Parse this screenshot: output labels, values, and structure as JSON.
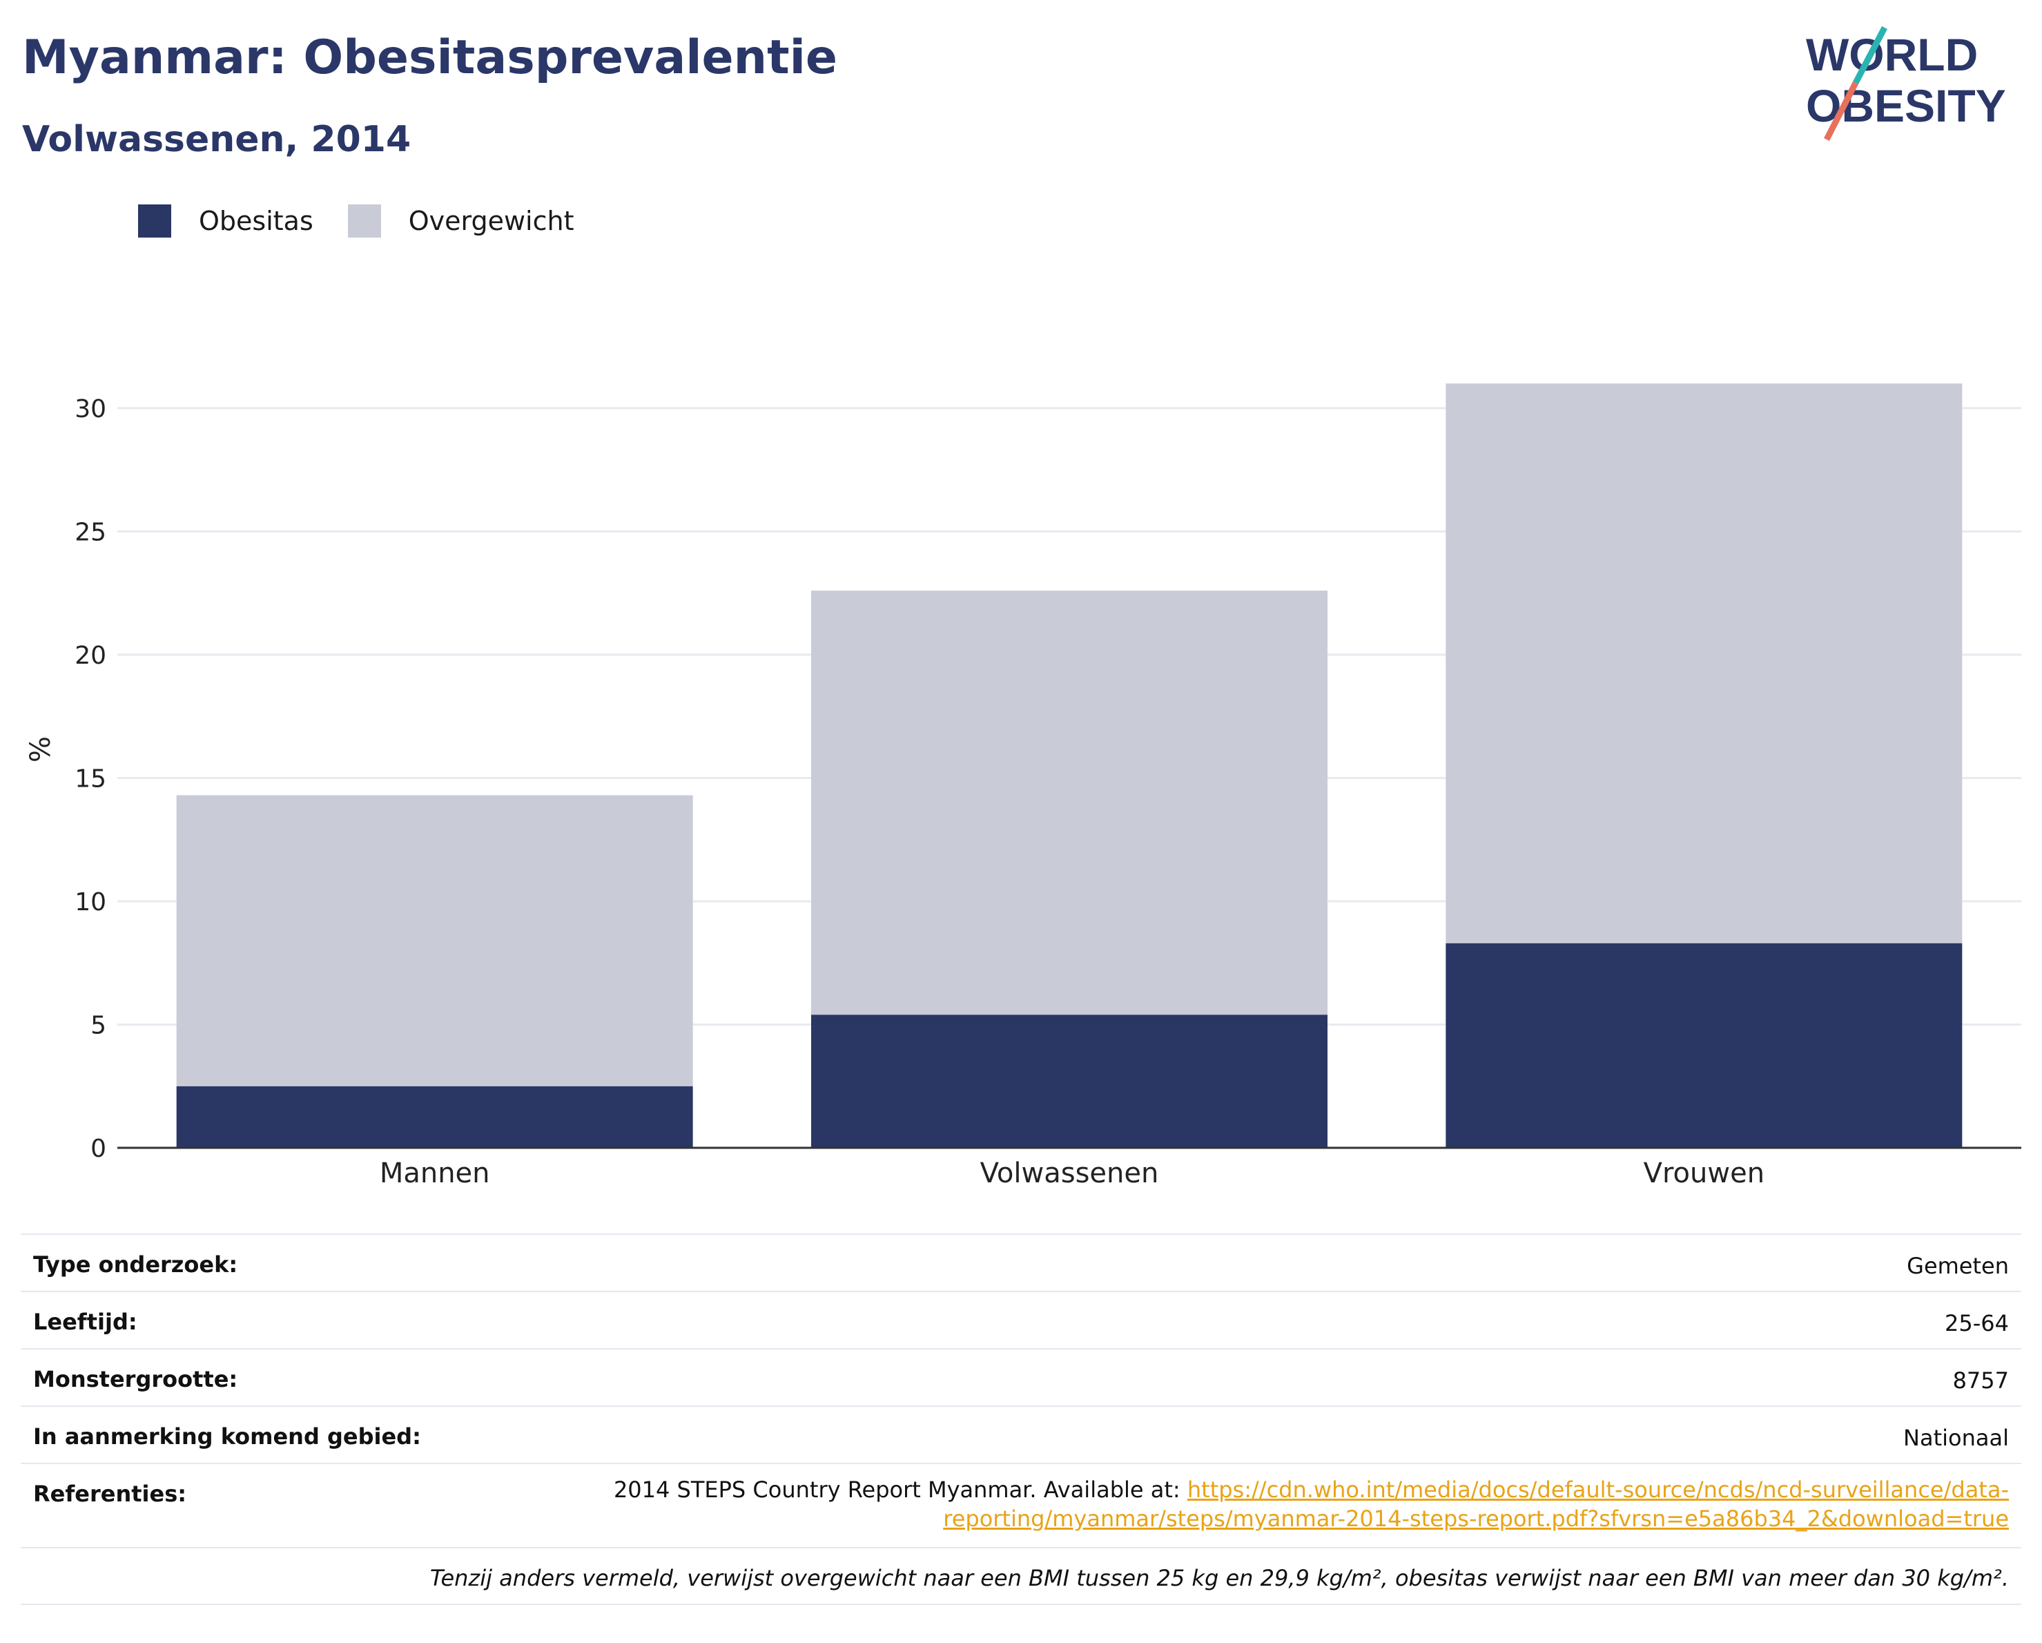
{
  "header": {
    "title": "Myanmar: Obesitasprevalentie",
    "subtitle": "Volwassenen, 2014"
  },
  "logo": {
    "line1": "WORLD",
    "line2": "OBESITY"
  },
  "colors": {
    "obesity": "#2a3765",
    "overweight": "#c9cbd7",
    "title": "#2a3768",
    "link": "#e8a317"
  },
  "legend": [
    {
      "label": "Obesitas",
      "color": "#2a3765"
    },
    {
      "label": "Overgewicht",
      "color": "#c9cbd7"
    }
  ],
  "chart_data": {
    "type": "bar",
    "stacked": true,
    "categories": [
      "Mannen",
      "Volwassenen",
      "Vrouwen"
    ],
    "series": [
      {
        "name": "Obesitas",
        "values": [
          2.5,
          5.4,
          8.3
        ]
      },
      {
        "name": "Overgewicht",
        "values": [
          11.8,
          17.2,
          22.7
        ]
      }
    ],
    "totals": [
      14.3,
      22.6,
      31.0
    ],
    "ylabel": "%",
    "xlabel": "",
    "ylim": [
      0,
      32.5
    ],
    "yticks": [
      0,
      5,
      10,
      15,
      20,
      25,
      30
    ],
    "grid": true,
    "legend_position": "top-left"
  },
  "info": {
    "rows": [
      {
        "label": "Type onderzoek:",
        "value": "Gemeten"
      },
      {
        "label": "Leeftijd:",
        "value": "25-64"
      },
      {
        "label": "Monstergrootte:",
        "value": "8757"
      },
      {
        "label": "In aanmerking komend gebied:",
        "value": "Nationaal"
      }
    ],
    "reference": {
      "label": "Referenties:",
      "text": "2014 STEPS Country Report Myanmar. Available at: ",
      "link_line1": "https://cdn.who.int/media/docs/default-source/ncds/ncd-surveillance/data-",
      "link_line2": "reporting/myanmar/steps/myanmar-2014-steps-report.pdf?sfvrsn=e5a86b34_2&download=true"
    },
    "footnote": "Tenzij anders vermeld, verwijst overgewicht naar een BMI tussen 25 kg en 29,9 kg/m², obesitas verwijst naar een BMI van meer dan 30 kg/m²."
  }
}
